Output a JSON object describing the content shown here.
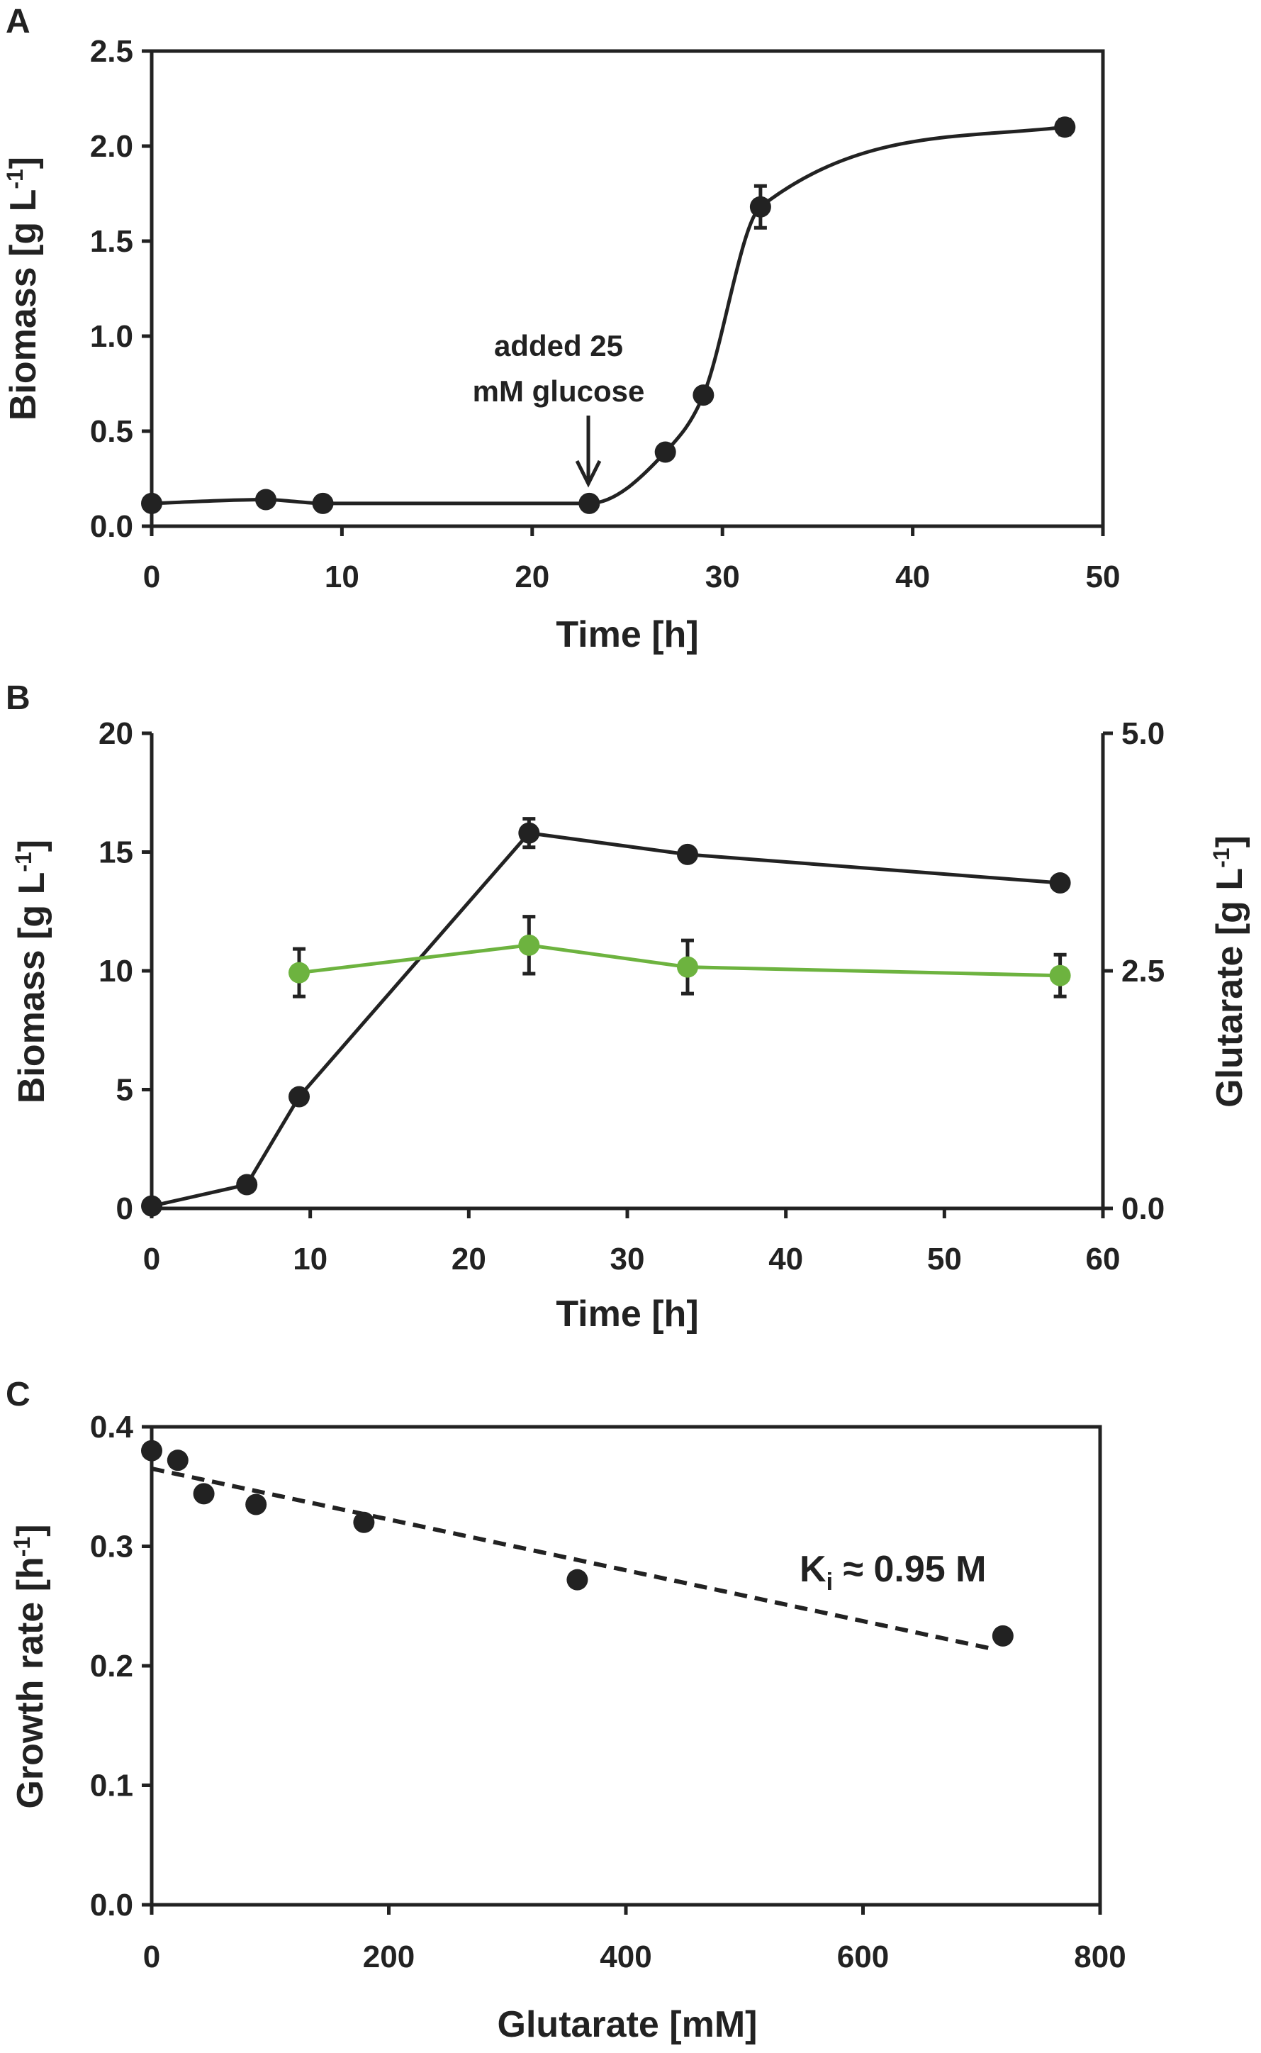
{
  "colors": {
    "ink": "#222222",
    "green": "#6db33f",
    "background": "#ffffff"
  },
  "chart_data": [
    {
      "panel": "A",
      "type": "line",
      "xlabel": "Time [h]",
      "ylabel": {
        "main": "Biomass [g L",
        "sup": "-1",
        "close": "]"
      },
      "xlim": [
        0,
        50
      ],
      "ylim": [
        0,
        2.5
      ],
      "xticks": [
        0,
        10,
        20,
        30,
        40,
        50
      ],
      "yticks": [
        0.0,
        0.5,
        1.0,
        1.5,
        2.0,
        2.5
      ],
      "ytick_labels": [
        "0.0",
        "0.5",
        "1.0",
        "1.5",
        "2.0",
        "2.5"
      ],
      "grid": false,
      "series": [
        {
          "name": "Biomass",
          "color": "#222222",
          "line": "smooth",
          "x": [
            0,
            6,
            9,
            23,
            27,
            29,
            32,
            48
          ],
          "y": [
            0.12,
            0.14,
            0.12,
            0.12,
            0.39,
            0.69,
            1.68,
            2.1
          ],
          "error": [
            0,
            0,
            0,
            0,
            0,
            0,
            0.11,
            0.04
          ]
        }
      ],
      "annotation": {
        "lines": [
          "added 25",
          "mM glucose"
        ],
        "x": 23,
        "arrow": "down"
      }
    },
    {
      "panel": "B",
      "type": "line",
      "xlabel": "Time [h]",
      "ylabel": {
        "main": "Biomass [g L",
        "sup": "-1",
        "close": "]"
      },
      "y2label": {
        "main": "Glutarate [g L",
        "sup": "-1",
        "close": "]"
      },
      "xlim": [
        0,
        60
      ],
      "ylim": [
        0,
        20
      ],
      "y2lim": [
        0,
        5
      ],
      "xticks": [
        0,
        10,
        20,
        30,
        40,
        50,
        60
      ],
      "yticks": [
        0,
        5,
        10,
        15,
        20
      ],
      "y2ticks": [
        0,
        2.5,
        5
      ],
      "y2tick_labels": [
        "0.0",
        "2.5",
        "5.0"
      ],
      "grid": false,
      "series": [
        {
          "name": "Biomass",
          "axis": "left",
          "color": "#222222",
          "x": [
            0,
            6,
            9.3,
            23.8,
            33.8,
            57.3
          ],
          "y": [
            0.1,
            1.0,
            4.7,
            15.8,
            14.9,
            13.7
          ],
          "error": [
            0,
            0,
            0,
            0.6,
            0,
            0
          ]
        },
        {
          "name": "Glutarate",
          "axis": "right",
          "color": "#6db33f",
          "x": [
            9.3,
            23.8,
            33.8,
            57.3
          ],
          "y": [
            2.48,
            2.77,
            2.54,
            2.45
          ],
          "error": [
            0.25,
            0.3,
            0.28,
            0.22
          ]
        }
      ]
    },
    {
      "panel": "C",
      "type": "scatter",
      "xlabel": "Glutarate [mM]",
      "ylabel": {
        "main": "Growth rate [h",
        "sup": "-1",
        "close": "]"
      },
      "xlim": [
        0,
        800
      ],
      "ylim": [
        0,
        0.4
      ],
      "xticks": [
        0,
        200,
        400,
        600,
        800
      ],
      "yticks": [
        0.0,
        0.1,
        0.2,
        0.3,
        0.4
      ],
      "ytick_labels": [
        "0.0",
        "0.1",
        "0.2",
        "0.3",
        "0.4"
      ],
      "grid": false,
      "series": [
        {
          "name": "Growth rate",
          "color": "#222222",
          "x": [
            0,
            22,
            44,
            88,
            179,
            359,
            718
          ],
          "y": [
            0.38,
            0.372,
            0.344,
            0.335,
            0.32,
            0.272,
            0.225
          ]
        }
      ],
      "fit": {
        "style": "dashed",
        "x": [
          0,
          710
        ],
        "y": [
          0.365,
          0.214
        ]
      },
      "annotation": {
        "prefix": "K",
        "sub": "i",
        "suffix": " ≈ 0.95 M"
      }
    }
  ]
}
